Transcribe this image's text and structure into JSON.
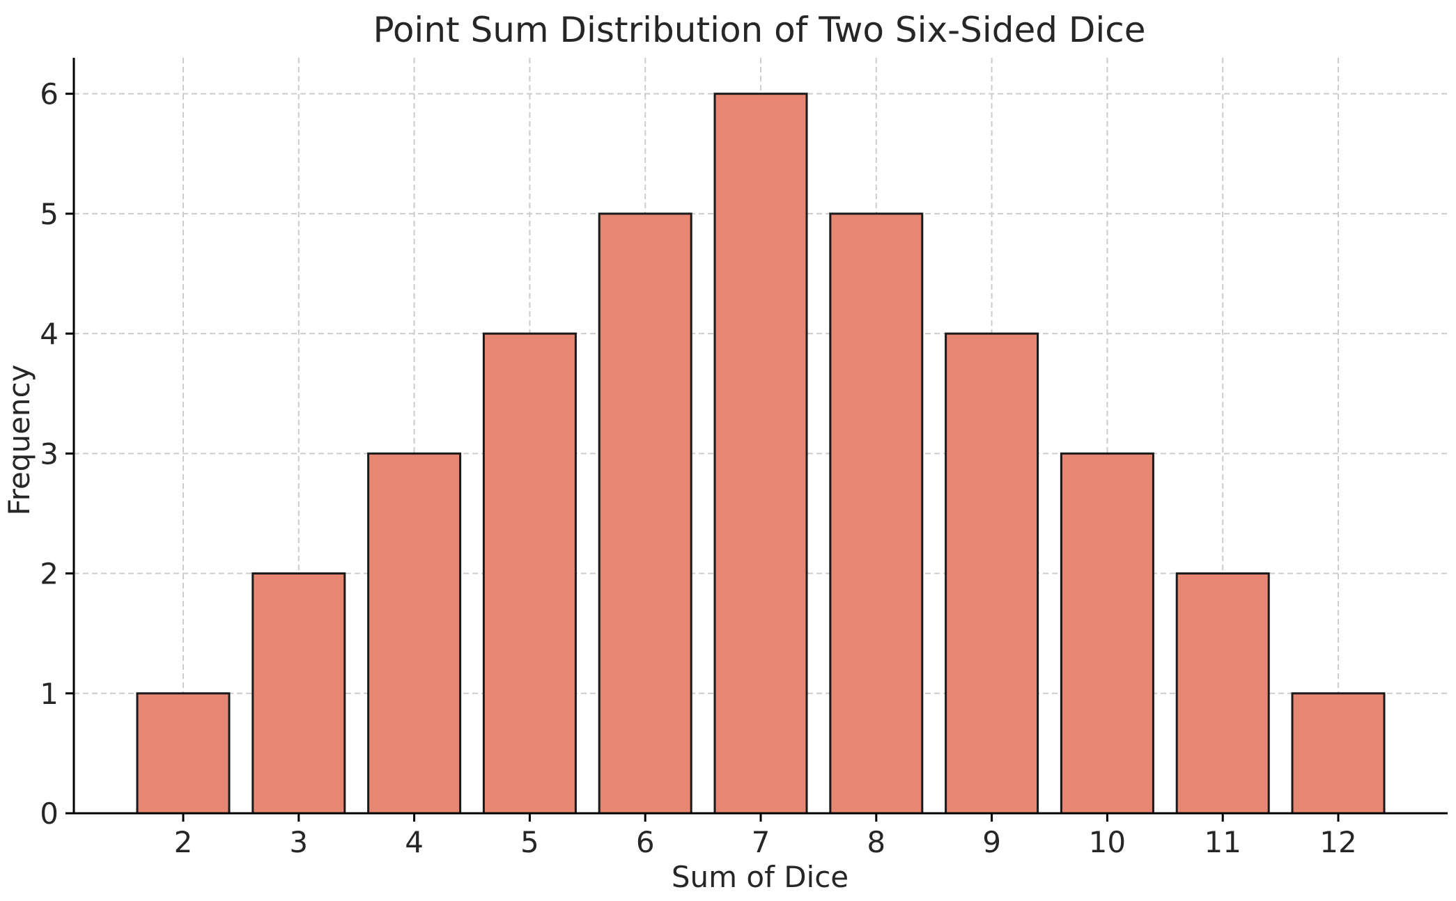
{
  "chart_data": {
    "type": "bar",
    "title": "Point Sum Distribution of Two Six-Sided Dice",
    "xlabel": "Sum of Dice",
    "ylabel": "Frequency",
    "categories": [
      "2",
      "3",
      "4",
      "5",
      "6",
      "7",
      "8",
      "9",
      "10",
      "11",
      "12"
    ],
    "values": [
      1,
      2,
      3,
      4,
      5,
      6,
      5,
      4,
      3,
      2,
      1
    ],
    "ylim": [
      0,
      6.3
    ],
    "yticks": [
      0,
      1,
      2,
      3,
      4,
      5,
      6
    ],
    "grid": true,
    "bar_color": "#e88674",
    "bar_edge_color": "#1a1a1a"
  }
}
